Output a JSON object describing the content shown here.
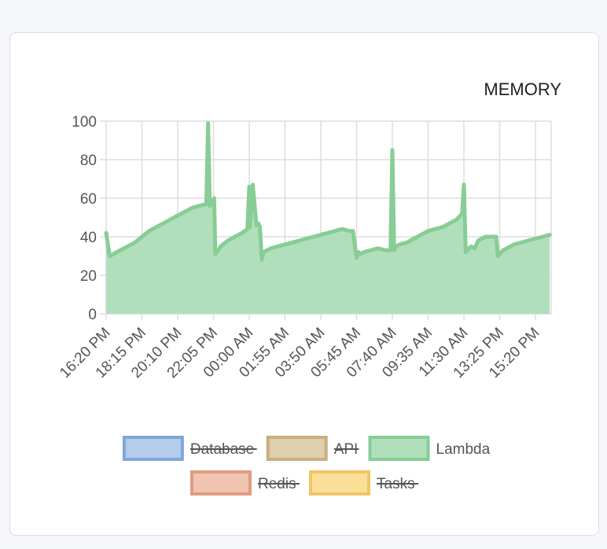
{
  "colors": {
    "page_background": "#f6f7fa",
    "card_background": "#ffffff",
    "grid": "#dddddd",
    "lambda_stroke": "#87cd95",
    "lambda_fill": "#b2dfbb"
  },
  "chart_data": {
    "type": "area",
    "title": "MEMORY",
    "xlabel": "",
    "ylabel": "",
    "ylim": [
      0,
      100
    ],
    "yticks": [
      0,
      20,
      40,
      60,
      80,
      100
    ],
    "grid": true,
    "legend_position": "bottom",
    "x_tick_labels": [
      "16:20 PM",
      "18:15 PM",
      "20:10 PM",
      "22:05 PM",
      "00:00 AM",
      "01:55 AM",
      "03:50 AM",
      "05:45 AM",
      "07:40 AM",
      "09:35 AM",
      "11:30 AM",
      "13:25 PM",
      "15:20 PM"
    ],
    "legend": [
      {
        "name": "Database",
        "hidden": true,
        "stroke": "#7fa7da",
        "fill": "#b3cdeb"
      },
      {
        "name": "API",
        "hidden": true,
        "stroke": "#c9ae80",
        "fill": "#e0cfae"
      },
      {
        "name": "Lambda",
        "hidden": false,
        "stroke": "#87cd95",
        "fill": "#b2dfbb"
      },
      {
        "name": "Redis",
        "hidden": true,
        "stroke": "#e09c80",
        "fill": "#f0c4b1"
      },
      {
        "name": "Tasks",
        "hidden": true,
        "stroke": "#f2c467",
        "fill": "#fadf98"
      }
    ],
    "series": [
      {
        "name": "Lambda",
        "x": [
          0,
          0.1,
          0.2,
          0.4,
          0.6,
          0.8,
          1.0,
          1.2,
          1.4,
          1.6,
          1.8,
          2.0,
          2.2,
          2.4,
          2.6,
          2.8,
          2.85,
          2.9,
          3.0,
          3.02,
          3.05,
          3.1,
          3.2,
          3.4,
          3.6,
          3.8,
          3.95,
          4.0,
          4.02,
          4.1,
          4.2,
          4.25,
          4.3,
          4.35,
          4.4,
          4.5,
          4.6,
          4.8,
          5.0,
          5.2,
          5.4,
          5.6,
          5.8,
          6.0,
          6.2,
          6.4,
          6.6,
          6.8,
          6.9,
          7.0,
          7.05,
          7.1,
          7.2,
          7.4,
          7.6,
          7.8,
          7.95,
          8.0,
          8.05,
          8.1,
          8.2,
          8.4,
          8.6,
          8.8,
          9.0,
          9.2,
          9.4,
          9.6,
          9.8,
          9.95,
          10.0,
          10.05,
          10.1,
          10.2,
          10.3,
          10.4,
          10.5,
          10.6,
          10.8,
          10.9,
          10.95,
          11.0,
          11.1,
          11.2,
          11.4,
          11.6,
          11.8,
          12.0,
          12.2,
          12.4
        ],
        "values": [
          42,
          30,
          31,
          33,
          35,
          37,
          40,
          43,
          45,
          47,
          49,
          51,
          53,
          55,
          56,
          57,
          99,
          56,
          59,
          60,
          31,
          32,
          35,
          38,
          40,
          42,
          44,
          66,
          45,
          67,
          46,
          47,
          45,
          28,
          32,
          33,
          34,
          35,
          36,
          37,
          38,
          39,
          40,
          41,
          42,
          43,
          44,
          43,
          43,
          29,
          32,
          31,
          32,
          33,
          34,
          33,
          33,
          85,
          33,
          35,
          36,
          37,
          39,
          41,
          43,
          44,
          45,
          47,
          49,
          52,
          67,
          32,
          33,
          35,
          34,
          38,
          39,
          40,
          40,
          40,
          30,
          31,
          33,
          34,
          36,
          37,
          38,
          39,
          40,
          41
        ]
      }
    ]
  }
}
